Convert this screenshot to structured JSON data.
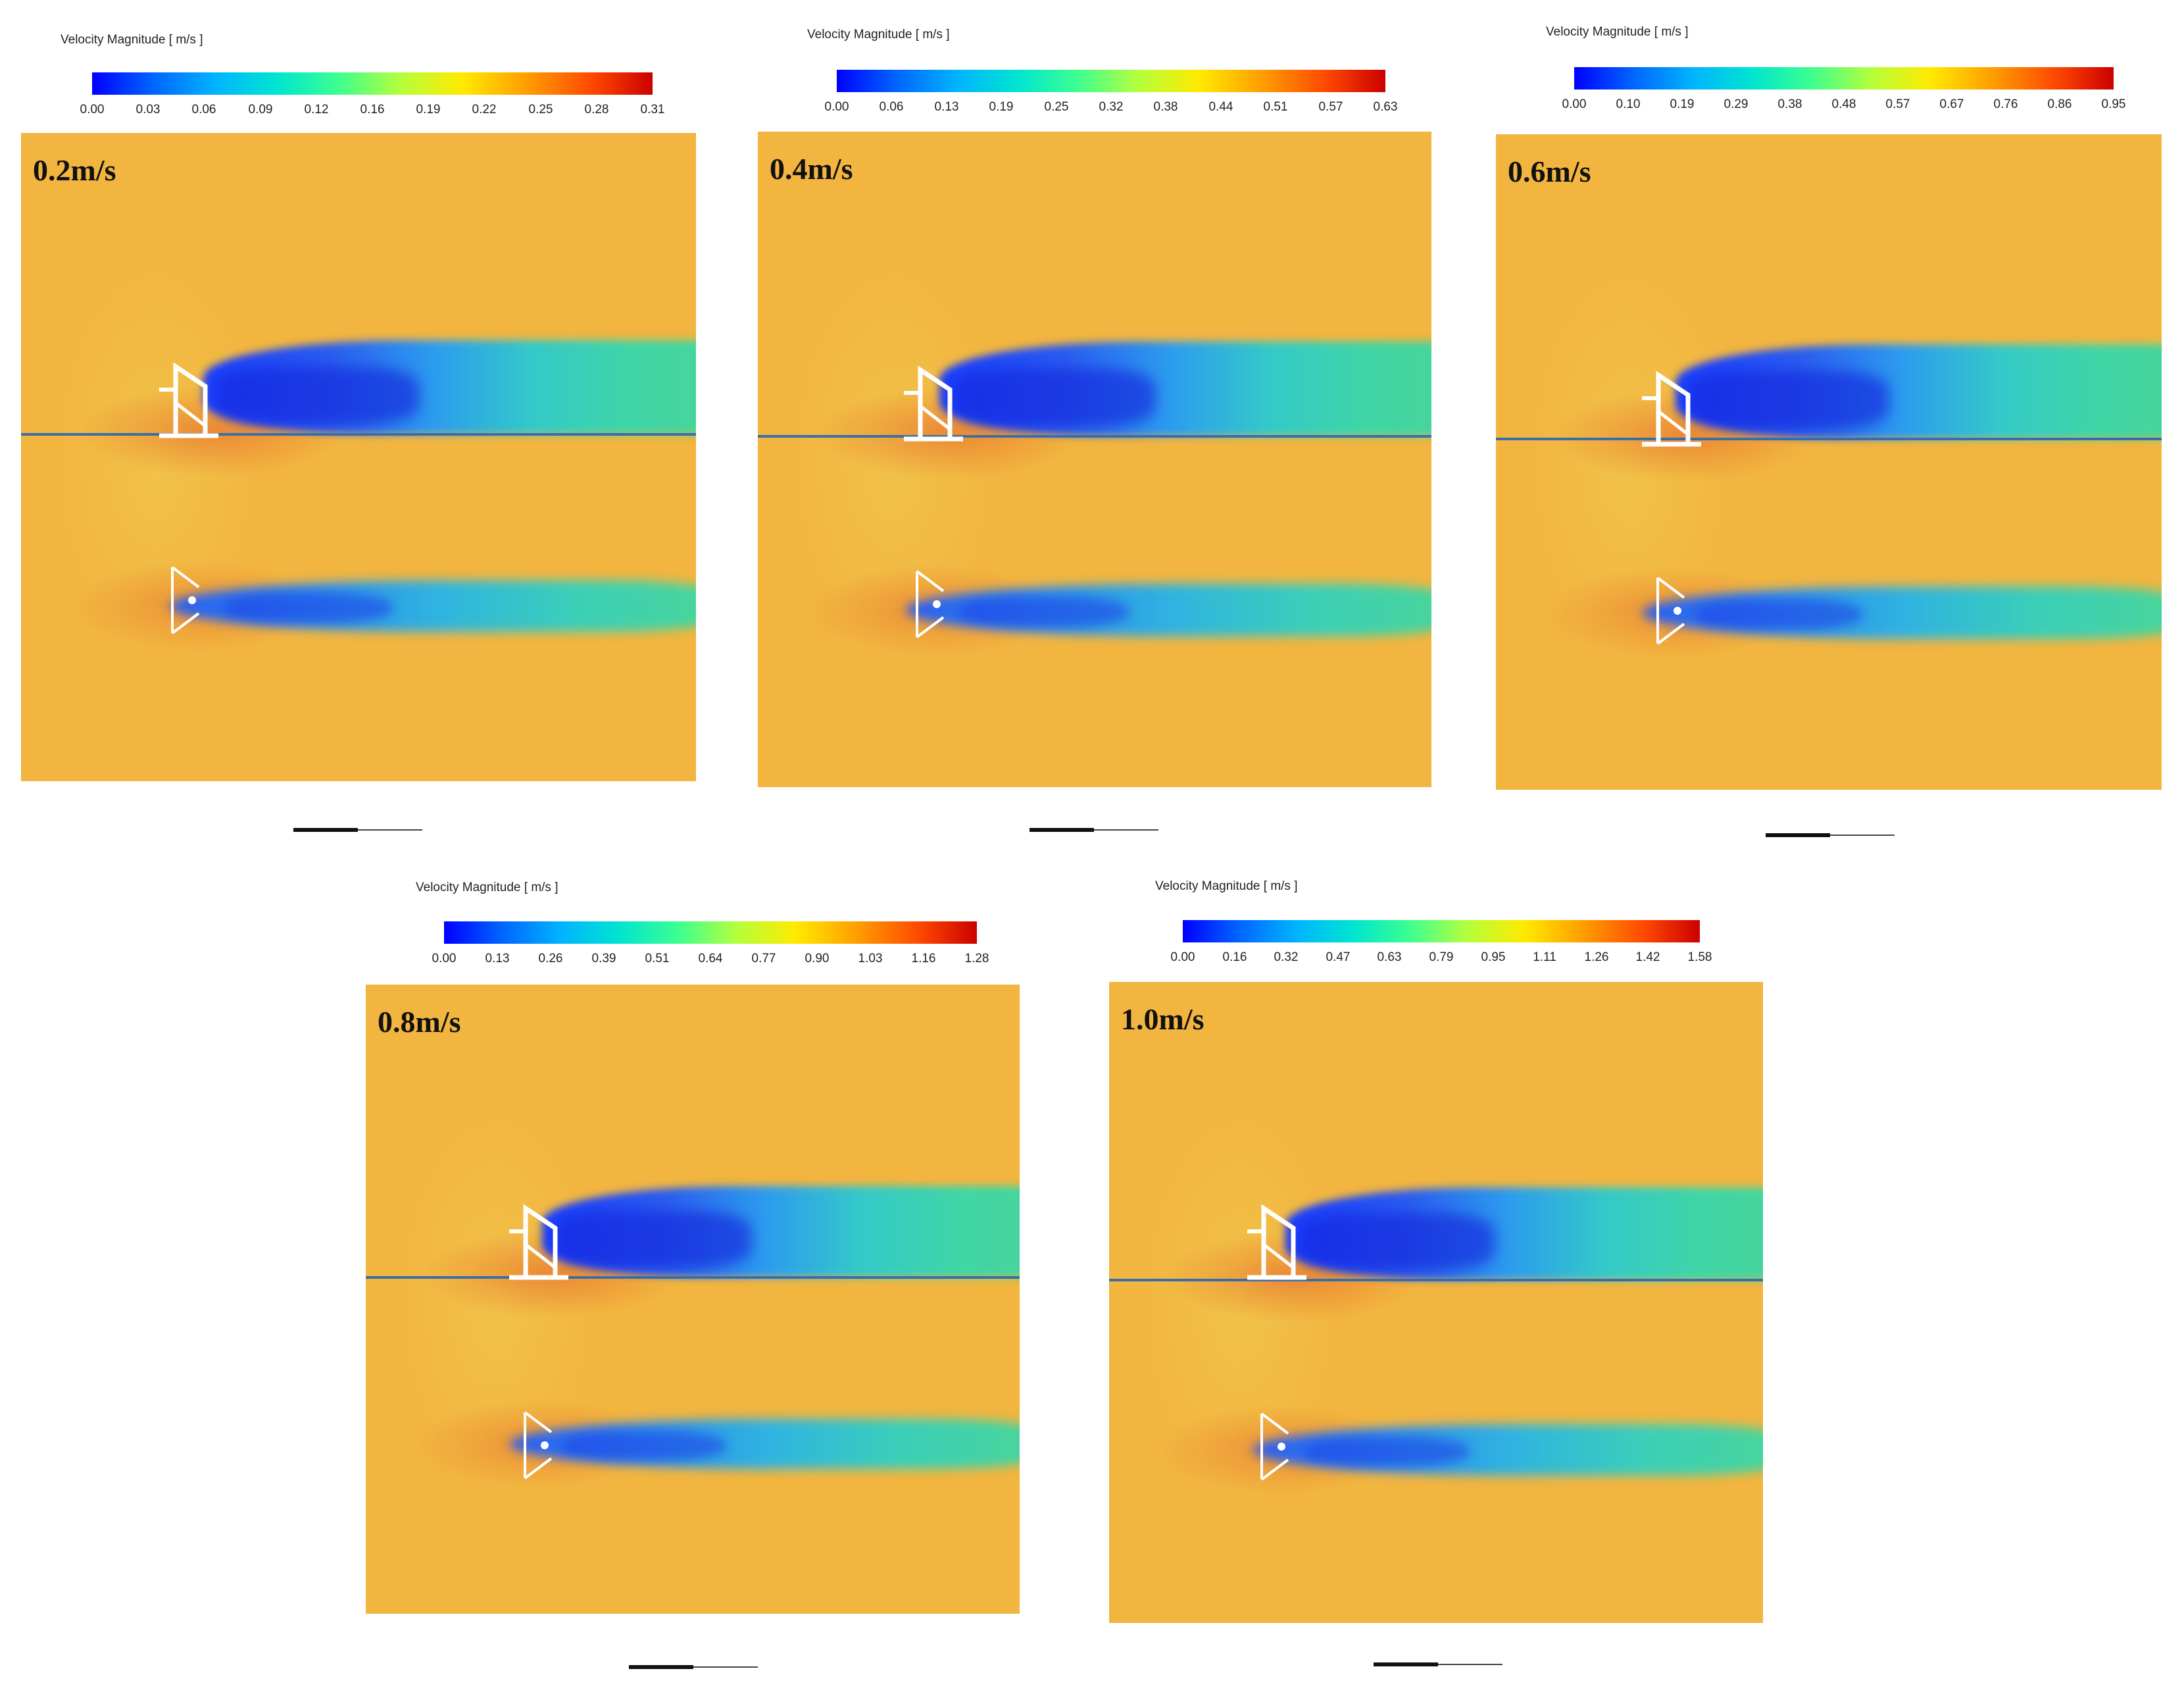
{
  "colorbar_title": "Velocity Magnitude [ m/s ]",
  "panels": [
    {
      "label": "0.2m/s",
      "ticks": [
        "0.00",
        "0.03",
        "0.06",
        "0.09",
        "0.12",
        "0.16",
        "0.19",
        "0.22",
        "0.25",
        "0.28",
        "0.31"
      ]
    },
    {
      "label": "0.4m/s",
      "ticks": [
        "0.00",
        "0.06",
        "0.13",
        "0.19",
        "0.25",
        "0.32",
        "0.38",
        "0.44",
        "0.51",
        "0.57",
        "0.63"
      ]
    },
    {
      "label": "0.6m/s",
      "ticks": [
        "0.00",
        "0.10",
        "0.19",
        "0.29",
        "0.38",
        "0.48",
        "0.57",
        "0.67",
        "0.76",
        "0.86",
        "0.95"
      ]
    },
    {
      "label": "0.8m/s",
      "ticks": [
        "0.00",
        "0.13",
        "0.26",
        "0.39",
        "0.51",
        "0.64",
        "0.77",
        "0.90",
        "1.03",
        "1.16",
        "1.28"
      ]
    },
    {
      "label": "1.0m/s",
      "ticks": [
        "0.00",
        "0.16",
        "0.32",
        "0.47",
        "0.63",
        "0.79",
        "0.95",
        "1.11",
        "1.26",
        "1.42",
        "1.58"
      ]
    }
  ],
  "colors": {
    "field": "#f2b53f",
    "low": "#0000ff",
    "high": "#cc0000"
  }
}
